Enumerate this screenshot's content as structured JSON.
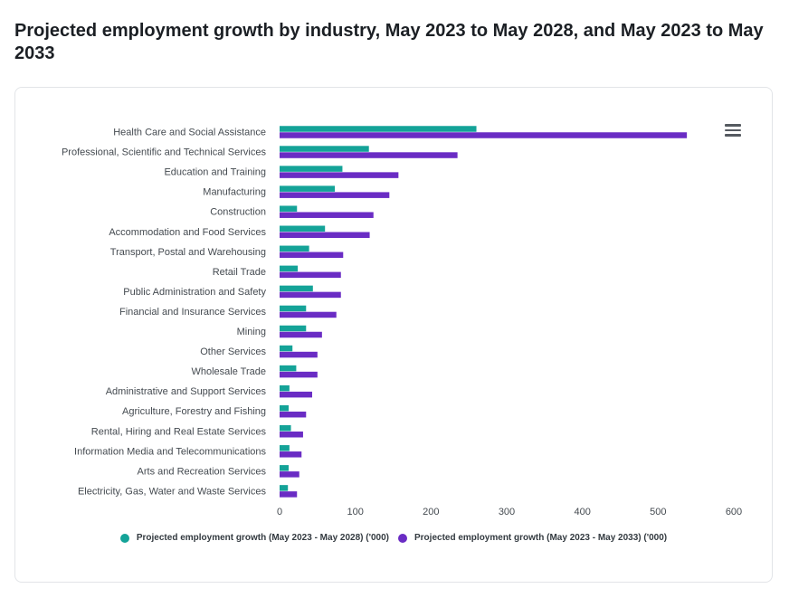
{
  "page": {
    "title": "Projected employment growth by industry, May 2023 to May 2028, and May 2023 to May 2033"
  },
  "chart_data": {
    "type": "bar",
    "orientation": "horizontal",
    "categories": [
      "Health Care and Social Assistance",
      "Professional, Scientific and Technical Services",
      "Education and Training",
      "Manufacturing",
      "Construction",
      "Accommodation and Food Services",
      "Transport, Postal and Warehousing",
      "Retail Trade",
      "Public Administration and Safety",
      "Financial and Insurance Services",
      "Mining",
      "Other Services",
      "Wholesale Trade",
      "Administrative and Support Services",
      "Agriculture, Forestry and Fishing",
      "Rental, Hiring and Real Estate Services",
      "Information Media and Telecommunications",
      "Arts and Recreation Services",
      "Electricity, Gas, Water and Waste Services"
    ],
    "series": [
      {
        "name": "Projected employment growth (May 2023 - May 2028) ('000)",
        "color": "#14a398",
        "values": [
          260,
          118,
          83,
          73,
          23,
          60,
          39,
          24,
          44,
          35,
          35,
          17,
          22,
          13,
          12,
          15,
          13,
          12,
          11
        ]
      },
      {
        "name": "Projected employment growth (May 2023 - May 2033) ('000)",
        "color": "#6a2cc4",
        "values": [
          538,
          235,
          157,
          145,
          124,
          119,
          84,
          81,
          81,
          75,
          56,
          50,
          50,
          43,
          35,
          31,
          29,
          26,
          23
        ]
      }
    ],
    "xlim": [
      0,
      600
    ],
    "xticks": [
      0,
      100,
      200,
      300,
      400,
      500,
      600
    ],
    "legend_position": "bottom"
  }
}
